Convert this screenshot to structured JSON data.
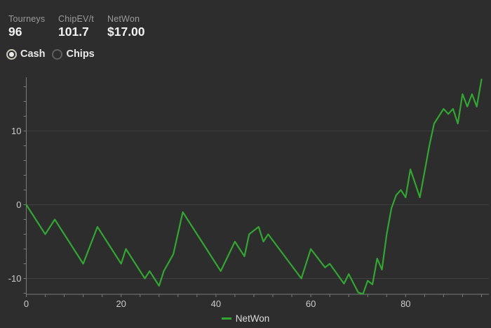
{
  "app": {
    "background": "#2d2d2d",
    "accent_green": "#32a532"
  },
  "stats": [
    {
      "label": "Tourneys",
      "value": "96"
    },
    {
      "label": "ChipEV/t",
      "value": "101.7"
    },
    {
      "label": "NetWon",
      "value": "$17.00"
    }
  ],
  "filters": {
    "options": [
      {
        "label": "Cash",
        "selected": true
      },
      {
        "label": "Chips",
        "selected": false
      }
    ]
  },
  "chart_data": {
    "type": "line",
    "title": "",
    "xlabel": "",
    "ylabel": "",
    "grid": "horizontal-only",
    "legend_position": "bottom-center",
    "x_range": [
      0,
      97.5
    ],
    "y_range": [
      -12.1,
      17.2
    ],
    "x_ticks_labeled": [
      0,
      20,
      40,
      60,
      80
    ],
    "x_minor_step": 4,
    "x_max": 96,
    "y_ticks_labeled": [
      10,
      0,
      -10
    ],
    "y_minor_step": 2,
    "y_minor_range": [
      -12,
      16
    ],
    "colors": {
      "line": "#32a532",
      "grid": "#3f3f3f",
      "axis": "#7a7a7a",
      "tick_label": "#cbcbcb"
    },
    "series": [
      {
        "name": "NetWon",
        "color": "#32a532",
        "points": [
          [
            0,
            0
          ],
          [
            4,
            -4
          ],
          [
            6,
            -2
          ],
          [
            12,
            -8
          ],
          [
            15,
            -3
          ],
          [
            20,
            -8
          ],
          [
            21,
            -6
          ],
          [
            25,
            -10
          ],
          [
            26,
            -9
          ],
          [
            28,
            -11
          ],
          [
            29,
            -9
          ],
          [
            31,
            -6.7
          ],
          [
            33,
            -1
          ],
          [
            41,
            -9
          ],
          [
            44,
            -5
          ],
          [
            46,
            -7
          ],
          [
            47,
            -4
          ],
          [
            49,
            -3
          ],
          [
            50,
            -5
          ],
          [
            51,
            -4
          ],
          [
            58,
            -10
          ],
          [
            60,
            -6
          ],
          [
            63,
            -8.5
          ],
          [
            64,
            -8
          ],
          [
            67,
            -10.7
          ],
          [
            68,
            -9.4
          ],
          [
            70,
            -11.9
          ],
          [
            71,
            -12.1
          ],
          [
            72,
            -10.3
          ],
          [
            73,
            -10.8
          ],
          [
            74,
            -7.3
          ],
          [
            75,
            -8.8
          ],
          [
            76,
            -4
          ],
          [
            77,
            -0.5
          ],
          [
            78,
            1.3
          ],
          [
            79,
            2
          ],
          [
            80,
            1
          ],
          [
            81,
            4.8
          ],
          [
            83,
            1
          ],
          [
            85,
            8
          ],
          [
            86,
            11
          ],
          [
            88,
            13
          ],
          [
            89,
            12.3
          ],
          [
            90,
            13
          ],
          [
            91,
            11
          ],
          [
            92,
            15
          ],
          [
            93,
            13.3
          ],
          [
            94,
            15
          ],
          [
            95,
            13.3
          ],
          [
            96,
            17
          ]
        ]
      }
    ]
  }
}
